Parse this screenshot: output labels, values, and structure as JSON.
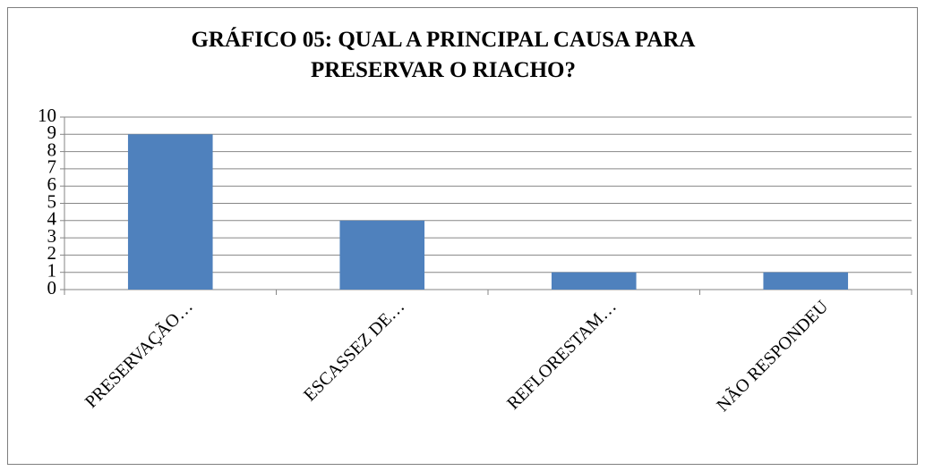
{
  "chart_data": {
    "type": "bar",
    "title": [
      "GRÁFICO 05: QUAL  A PRINCIPAL CAUSA PARA",
      "PRESERVAR O RIACHO?"
    ],
    "categories": [
      "PRESERVAÇÃO…",
      "ESCASSEZ DE…",
      "REFLORESTAM…",
      "NÃO RESPONDEU"
    ],
    "values": [
      9,
      4,
      1,
      1
    ],
    "color": "#4f81bd",
    "ylim": [
      0,
      10
    ],
    "yticks": [
      0,
      1,
      2,
      3,
      4,
      5,
      6,
      7,
      8,
      9,
      10
    ],
    "grid": true
  }
}
